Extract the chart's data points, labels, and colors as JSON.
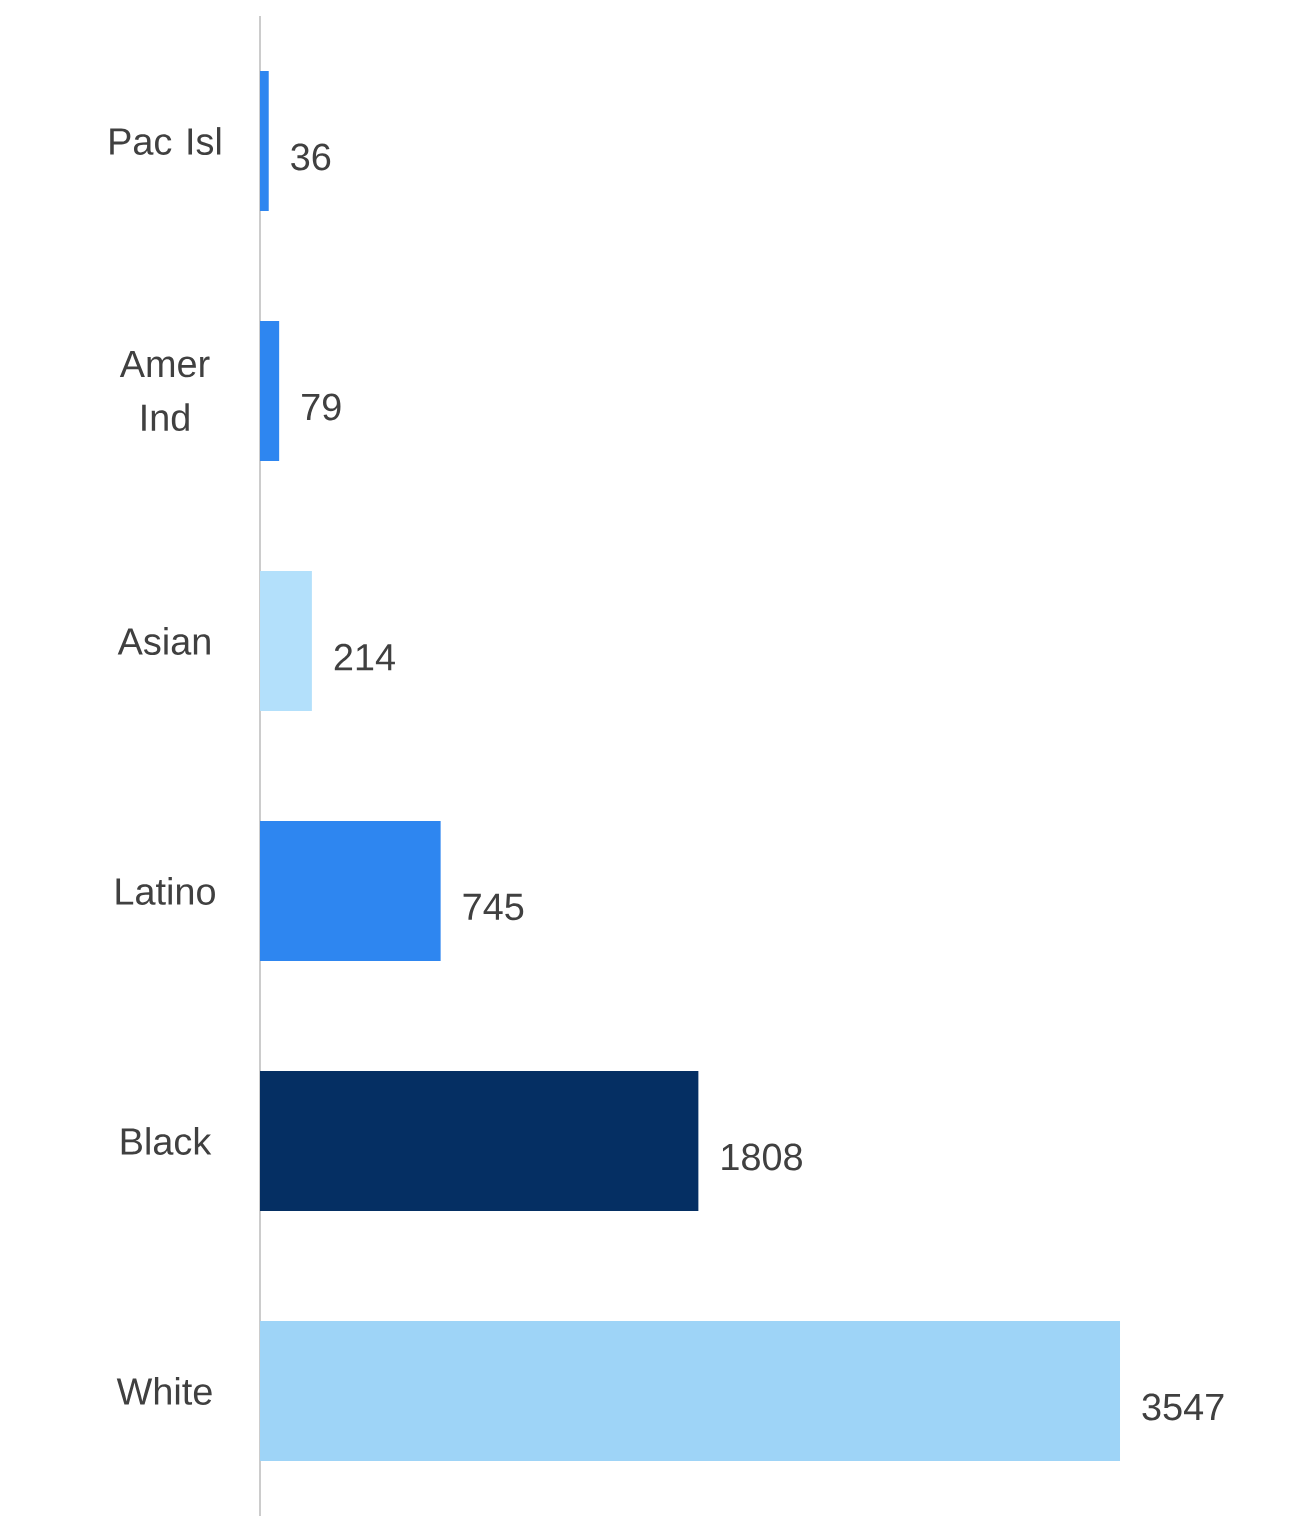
{
  "chart_data": {
    "type": "bar",
    "orientation": "horizontal",
    "categories": [
      "Pac Isl",
      "Amer Ind",
      "Asian",
      "Latino",
      "Black",
      "White"
    ],
    "values": [
      36,
      79,
      214,
      745,
      1808,
      3547
    ],
    "colors": [
      "#2e86f0",
      "#2e86f0",
      "#b3e0fb",
      "#2e86f0",
      "#052f63",
      "#9ed4f7"
    ],
    "data_labels": true
  }
}
